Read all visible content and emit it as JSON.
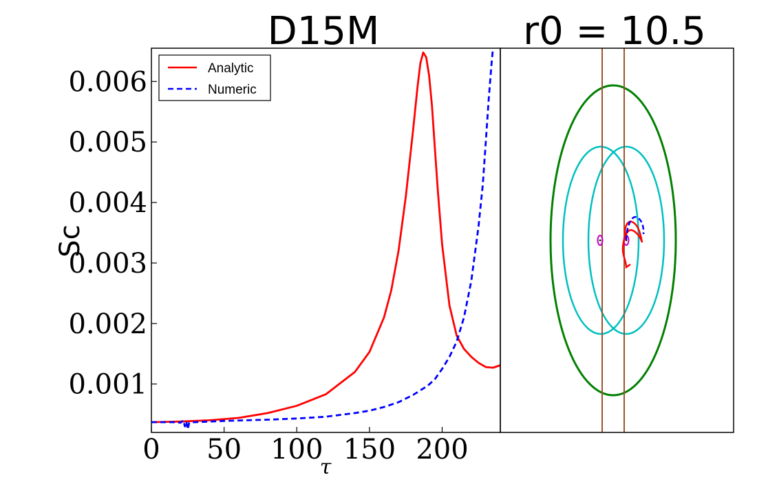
{
  "chart_data": [
    {
      "type": "line",
      "title": "D15M",
      "xlabel": "τ",
      "ylabel": "Sc",
      "xlim": [
        0,
        240
      ],
      "ylim": [
        0.0002,
        0.00655
      ],
      "xticks": [
        0,
        50,
        100,
        150,
        200
      ],
      "yticks": [
        0.001,
        0.002,
        0.003,
        0.004,
        0.005,
        0.006
      ],
      "legend_position": "top-left",
      "series": [
        {
          "name": "Analytic",
          "color": "#ff0000",
          "style": "solid",
          "x": [
            0,
            20,
            40,
            60,
            80,
            100,
            120,
            140,
            150,
            160,
            165,
            170,
            175,
            180,
            183,
            185,
            187,
            189,
            191,
            193,
            195,
            197,
            200,
            205,
            210,
            215,
            220,
            225,
            230,
            235,
            240
          ],
          "y": [
            0.00037,
            0.00038,
            0.0004,
            0.00044,
            0.00052,
            0.00064,
            0.00083,
            0.0012,
            0.00153,
            0.0021,
            0.00255,
            0.0032,
            0.0041,
            0.0052,
            0.0059,
            0.0063,
            0.00648,
            0.0064,
            0.0061,
            0.0056,
            0.0049,
            0.0042,
            0.0033,
            0.0023,
            0.0018,
            0.00158,
            0.00145,
            0.00135,
            0.00128,
            0.00127,
            0.00131
          ]
        },
        {
          "name": "Numeric",
          "color": "#0000ff",
          "style": "dashed",
          "x": [
            0,
            10,
            15,
            20,
            22,
            23,
            24,
            25,
            26,
            28,
            30,
            50,
            80,
            100,
            120,
            140,
            150,
            160,
            170,
            180,
            190,
            195,
            200,
            205,
            210,
            215,
            220,
            225,
            228,
            230,
            232,
            234,
            235
          ],
          "y": [
            0.00037,
            0.00037,
            0.00037,
            0.00036,
            0.0004,
            0.0003,
            0.00038,
            0.00025,
            0.00036,
            0.00037,
            0.00037,
            0.00039,
            0.00041,
            0.00043,
            0.00046,
            0.00052,
            0.00056,
            0.00062,
            0.0007,
            0.00082,
            0.00097,
            0.00108,
            0.00125,
            0.00145,
            0.0017,
            0.0021,
            0.0027,
            0.0036,
            0.0043,
            0.005,
            0.0057,
            0.0063,
            0.00655
          ]
        }
      ]
    },
    {
      "type": "line",
      "title": "r0 = 10.5",
      "description_colors": {
        "outer_ellipse": "#008000",
        "inner_ellipses": "#00bfbf",
        "vertical_lines": "#a0522d",
        "markers": "#bf00bf",
        "analytic": "#ff0000",
        "numeric": "#0000ff"
      }
    }
  ]
}
